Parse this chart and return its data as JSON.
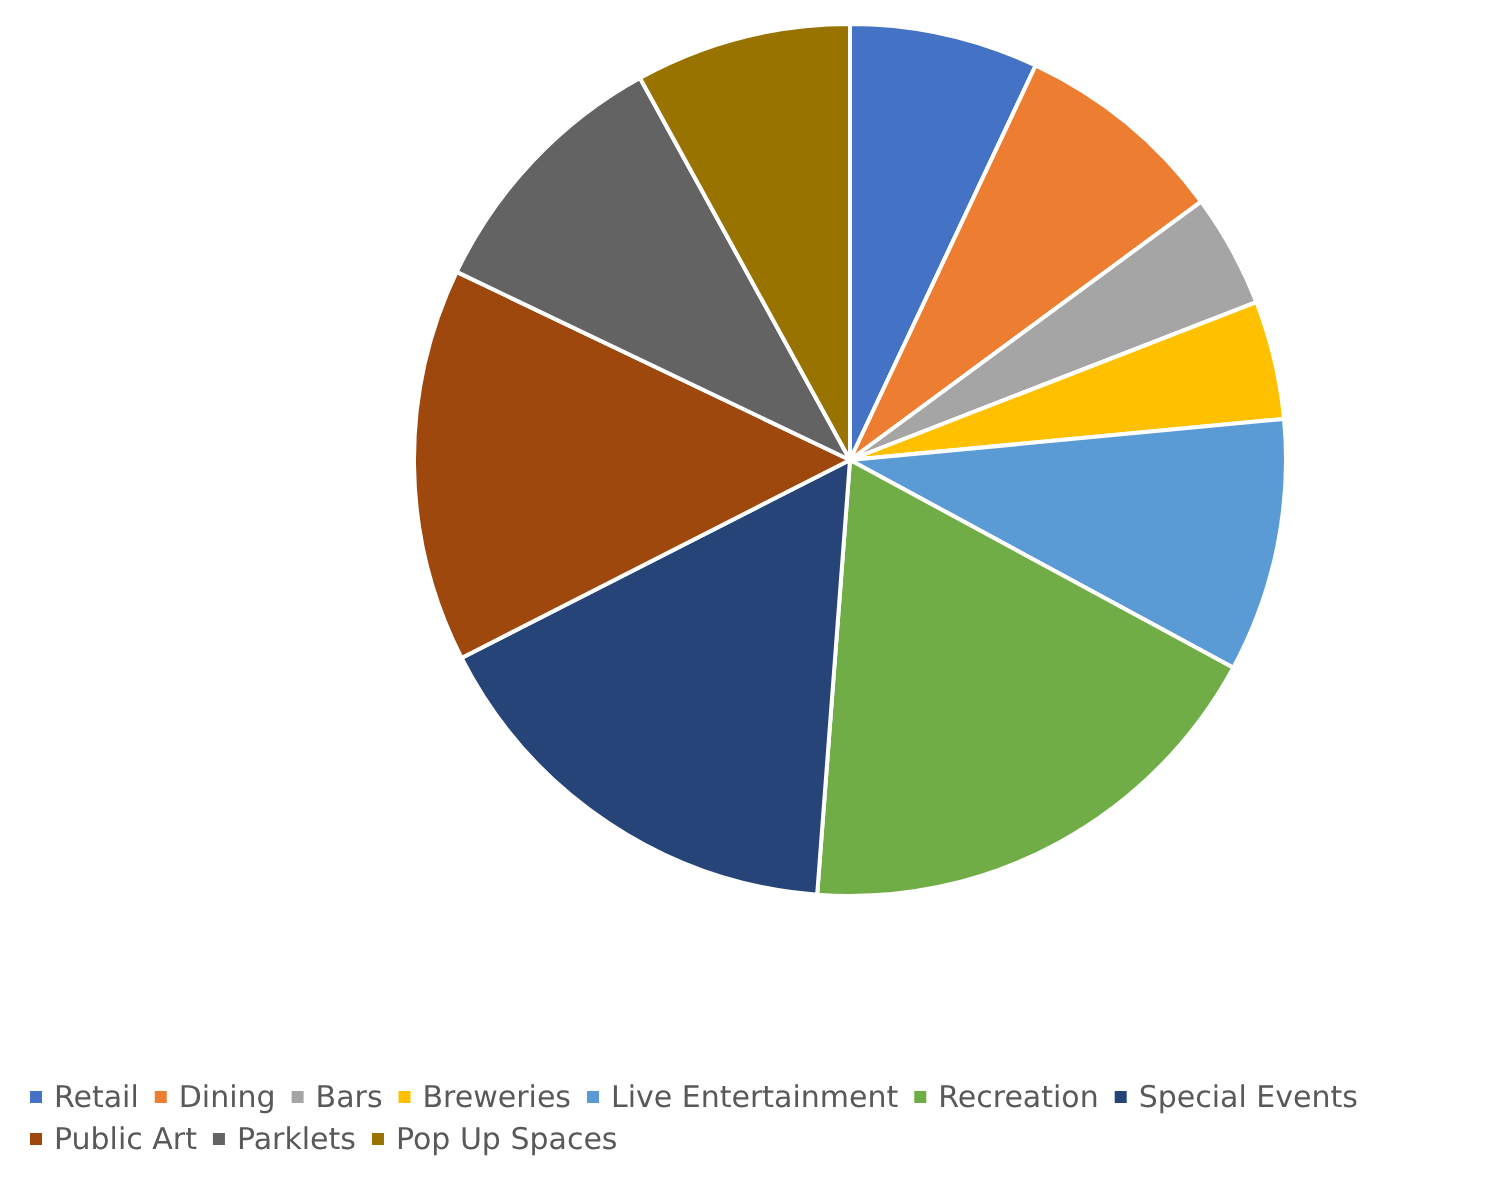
{
  "chart_data": {
    "type": "pie",
    "categories": [
      "Retail",
      "Dining",
      "Bars",
      "Breweries",
      "Live Entertainment",
      "Recreation",
      "Special Events",
      "Public Art",
      "Parklets",
      "Pop Up Spaces"
    ],
    "values": [
      7.0,
      7.9,
      4.2,
      4.4,
      9.4,
      18.3,
      16.3,
      14.6,
      9.9,
      8.0
    ],
    "colors": [
      "#4472c4",
      "#ed7d31",
      "#a5a5a5",
      "#ffc000",
      "#5b9bd5",
      "#70ad47",
      "#264478",
      "#9e480e",
      "#636363",
      "#997300"
    ],
    "legend": "bottom"
  }
}
